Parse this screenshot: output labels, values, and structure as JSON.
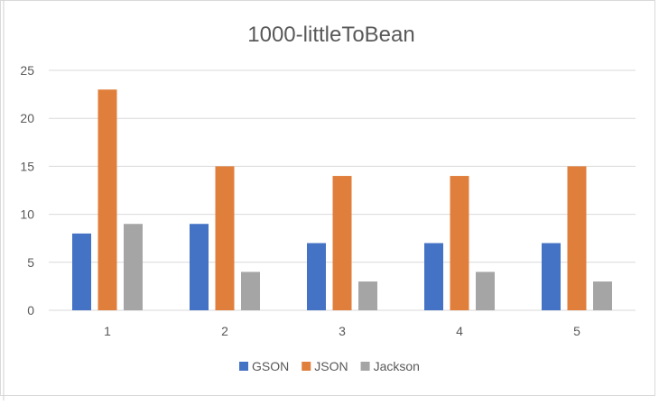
{
  "chart_data": {
    "type": "bar",
    "title": "1000-littleToBean",
    "xlabel": "",
    "ylabel": "",
    "categories": [
      "1",
      "2",
      "3",
      "4",
      "5"
    ],
    "series": [
      {
        "name": "GSON",
        "values": [
          8,
          9,
          7,
          7,
          7
        ],
        "color": "#4472C4"
      },
      {
        "name": "JSON",
        "values": [
          23,
          15,
          14,
          14,
          15
        ],
        "color": "#E07F3C"
      },
      {
        "name": "Jackson",
        "values": [
          9,
          4,
          3,
          4,
          3
        ],
        "color": "#A5A5A5"
      }
    ],
    "ylim": [
      0,
      25
    ],
    "yticks": [
      "0",
      "5",
      "10",
      "15",
      "20",
      "25"
    ],
    "grid": true,
    "legend": "bottom"
  }
}
